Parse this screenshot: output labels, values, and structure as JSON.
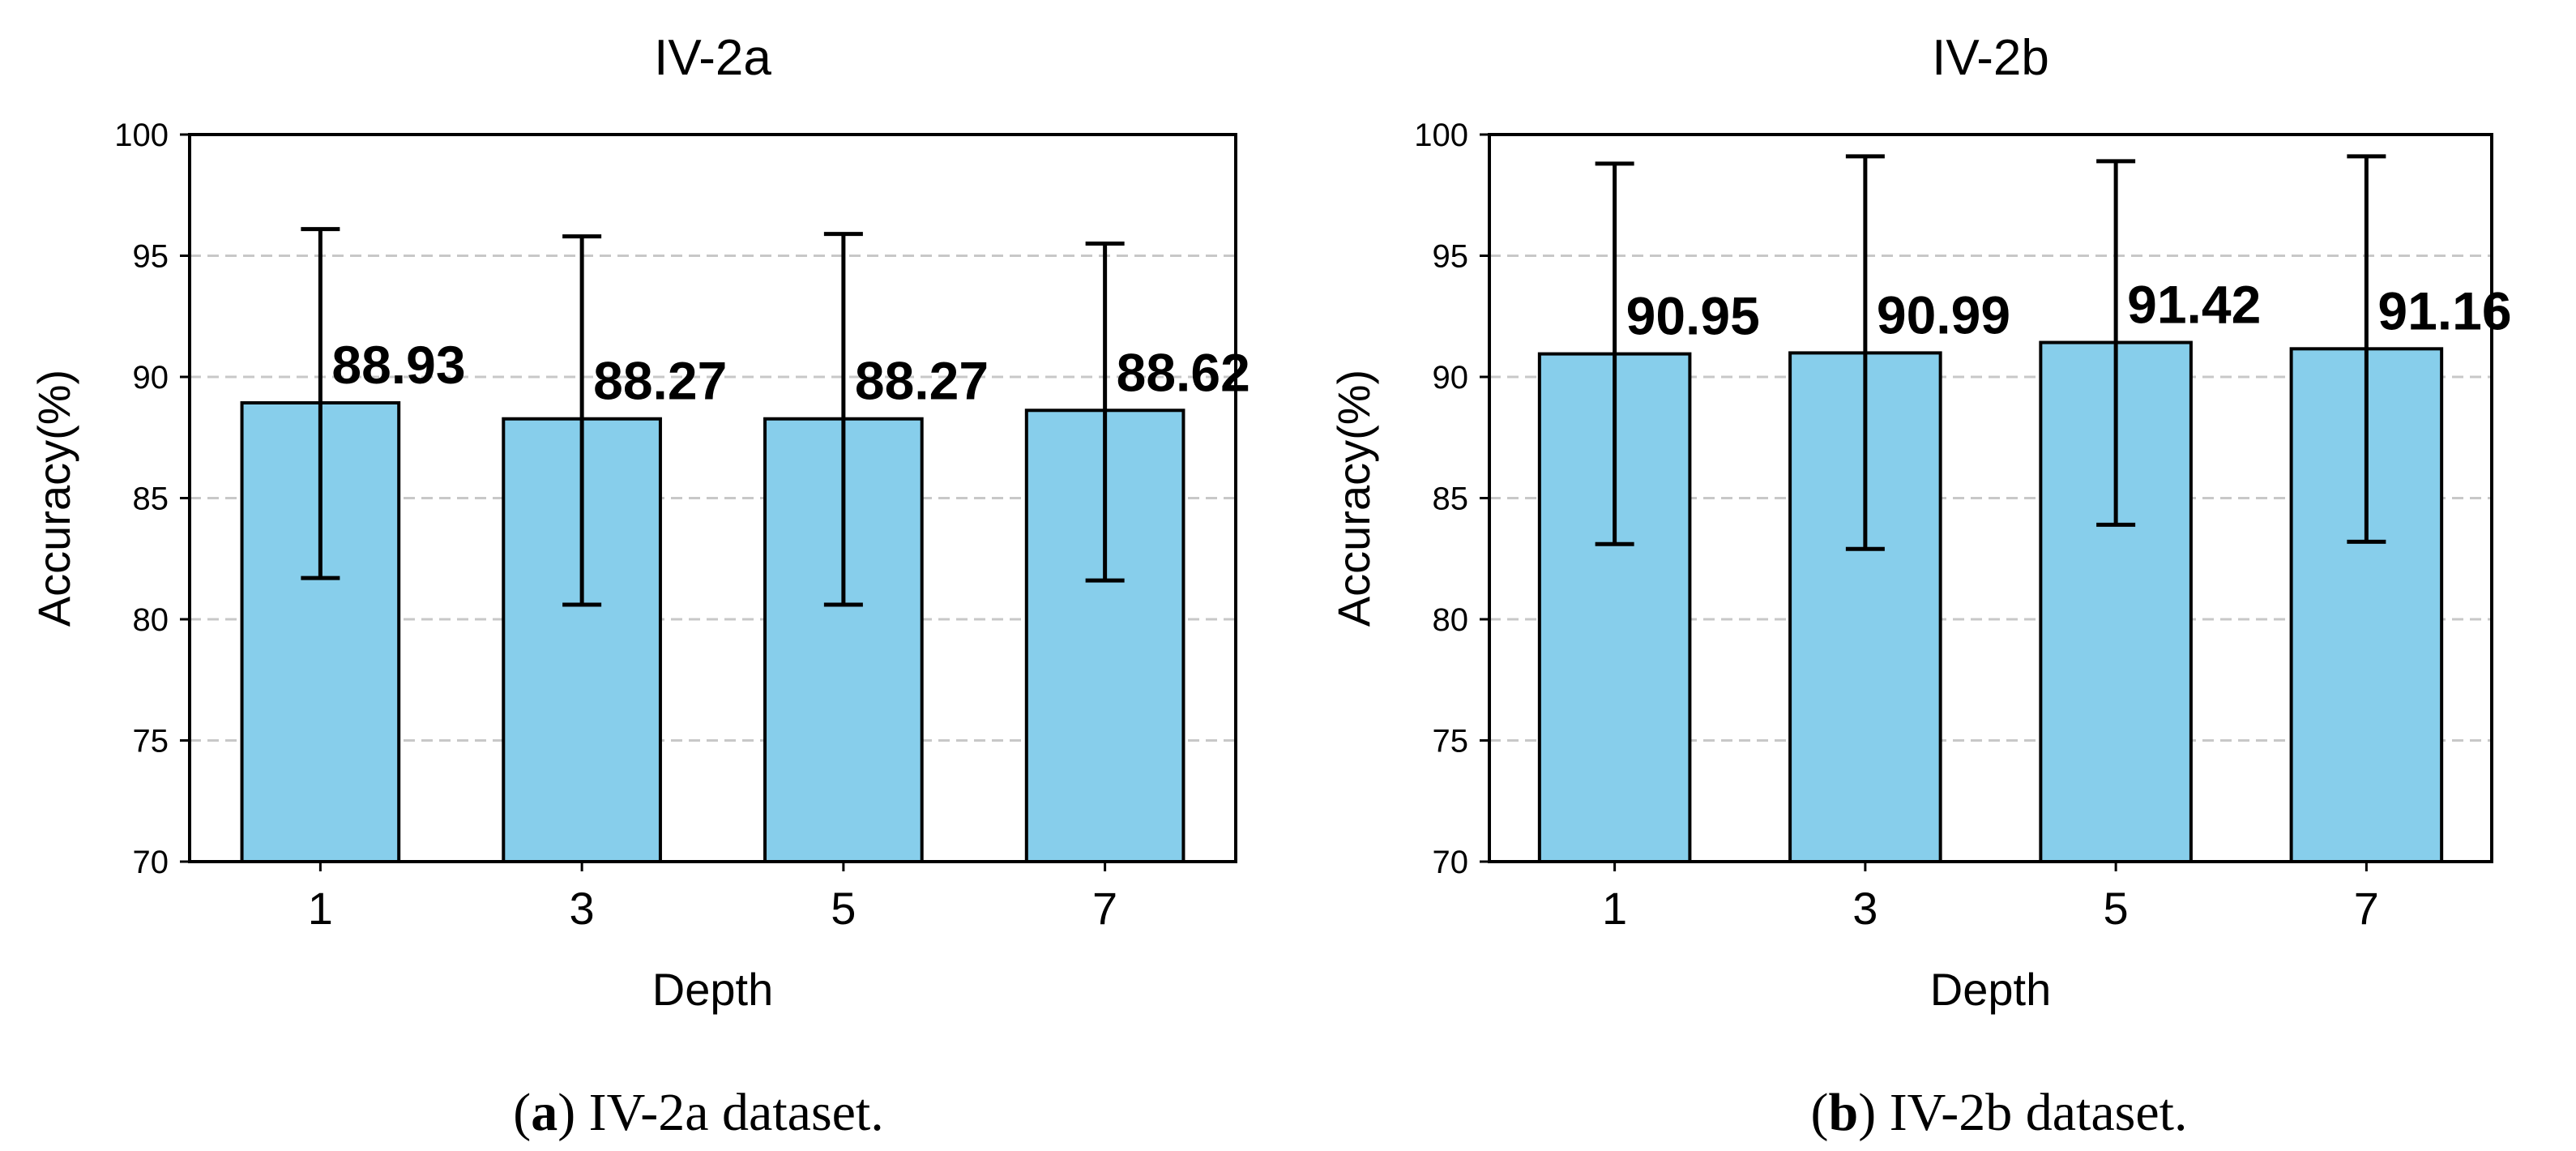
{
  "chart_data": [
    {
      "type": "bar",
      "title": "IV-2a",
      "xlabel": "Depth",
      "ylabel": "Accuracy(%)",
      "categories": [
        "1",
        "3",
        "5",
        "7"
      ],
      "values": [
        88.93,
        88.27,
        88.27,
        88.62
      ],
      "value_labels": [
        "88.93",
        "88.27",
        "88.27",
        "88.62"
      ],
      "error_low": [
        81.7,
        80.6,
        80.6,
        81.6
      ],
      "error_high": [
        96.1,
        95.8,
        95.9,
        95.5
      ],
      "ylim": [
        70,
        100
      ],
      "yticks": [
        70,
        75,
        80,
        85,
        90,
        95,
        100
      ],
      "grid": "horizontal dashed",
      "bar_color": "#87CEEB",
      "caption_letter": "a",
      "caption_text": " IV-2a dataset."
    },
    {
      "type": "bar",
      "title": "IV-2b",
      "xlabel": "Depth",
      "ylabel": "Accuracy(%)",
      "categories": [
        "1",
        "3",
        "5",
        "7"
      ],
      "values": [
        90.95,
        90.99,
        91.42,
        91.16
      ],
      "value_labels": [
        "90.95",
        "90.99",
        "91.42",
        "91.16"
      ],
      "error_low": [
        83.1,
        82.9,
        83.9,
        83.2
      ],
      "error_high": [
        98.8,
        99.1,
        98.9,
        99.1
      ],
      "ylim": [
        70,
        100
      ],
      "yticks": [
        70,
        75,
        80,
        85,
        90,
        95,
        100
      ],
      "grid": "horizontal dashed",
      "bar_color": "#87CEEB",
      "caption_letter": "b",
      "caption_text": " IV-2b dataset."
    }
  ]
}
